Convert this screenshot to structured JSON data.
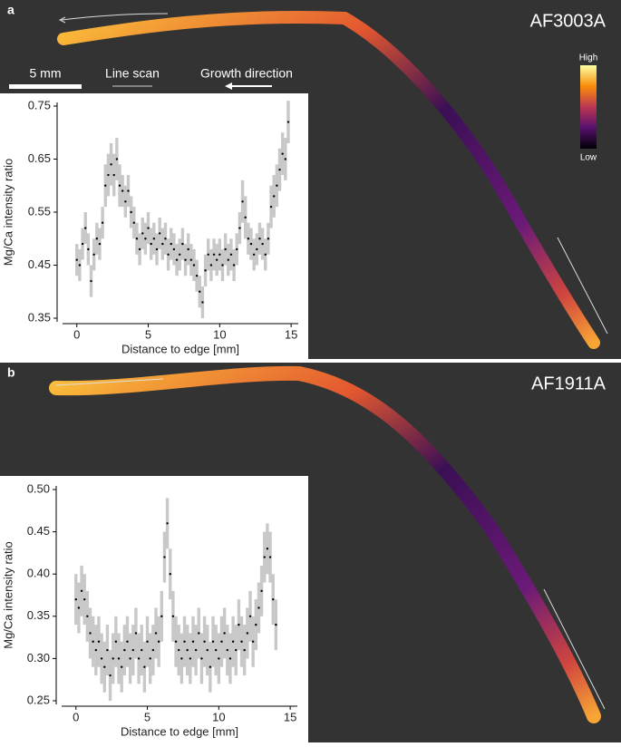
{
  "chart_data": [
    {
      "type": "scatter",
      "panel_label": "a",
      "sample": "AF3003A",
      "scale_bar_label": "5 mm",
      "line_scan_label": "Line scan",
      "growth_direction_label": "Growth direction",
      "colorbar_high": "High",
      "colorbar_low": "Low",
      "xlabel": "Distance to edge [mm]",
      "ylabel": "Mg/Ca intensity ratio",
      "xlim": [
        -1,
        15.5
      ],
      "ylim": [
        0.35,
        0.75
      ],
      "xticks": [
        0,
        5,
        10,
        15
      ],
      "yticks": [
        0.35,
        0.45,
        0.55,
        0.65,
        0.75
      ],
      "series": [
        {
          "color": "#000000",
          "error_color": "#c8c8c8",
          "x": [
            0,
            0.2,
            0.4,
            0.6,
            0.8,
            1.0,
            1.2,
            1.4,
            1.6,
            1.8,
            2.0,
            2.2,
            2.4,
            2.6,
            2.8,
            3.0,
            3.2,
            3.4,
            3.6,
            3.8,
            4.0,
            4.2,
            4.4,
            4.6,
            4.8,
            5.0,
            5.2,
            5.4,
            5.6,
            5.8,
            6.0,
            6.2,
            6.4,
            6.6,
            6.8,
            7.0,
            7.2,
            7.4,
            7.6,
            7.8,
            8.0,
            8.2,
            8.4,
            8.6,
            8.8,
            9.0,
            9.2,
            9.4,
            9.6,
            9.8,
            10.0,
            10.2,
            10.4,
            10.6,
            10.8,
            11.0,
            11.2,
            11.4,
            11.6,
            11.8,
            12.0,
            12.2,
            12.4,
            12.6,
            12.8,
            13.0,
            13.2,
            13.4,
            13.6,
            13.8,
            14.0,
            14.2,
            14.4,
            14.6,
            14.8
          ],
          "values": [
            0.46,
            0.45,
            0.49,
            0.52,
            0.48,
            0.42,
            0.47,
            0.5,
            0.49,
            0.53,
            0.6,
            0.62,
            0.64,
            0.62,
            0.65,
            0.6,
            0.59,
            0.57,
            0.59,
            0.55,
            0.53,
            0.5,
            0.48,
            0.51,
            0.5,
            0.52,
            0.49,
            0.5,
            0.48,
            0.51,
            0.49,
            0.5,
            0.47,
            0.49,
            0.48,
            0.46,
            0.47,
            0.49,
            0.46,
            0.48,
            0.46,
            0.45,
            0.43,
            0.4,
            0.38,
            0.44,
            0.47,
            0.45,
            0.47,
            0.46,
            0.47,
            0.45,
            0.48,
            0.46,
            0.47,
            0.45,
            0.48,
            0.52,
            0.57,
            0.54,
            0.5,
            0.49,
            0.47,
            0.48,
            0.5,
            0.49,
            0.47,
            0.5,
            0.56,
            0.58,
            0.6,
            0.63,
            0.66,
            0.65,
            0.72
          ],
          "errors": [
            0.03,
            0.03,
            0.03,
            0.03,
            0.03,
            0.03,
            0.03,
            0.03,
            0.03,
            0.03,
            0.04,
            0.04,
            0.04,
            0.04,
            0.04,
            0.04,
            0.03,
            0.03,
            0.03,
            0.03,
            0.03,
            0.03,
            0.03,
            0.03,
            0.03,
            0.03,
            0.03,
            0.03,
            0.03,
            0.03,
            0.03,
            0.03,
            0.03,
            0.03,
            0.03,
            0.03,
            0.03,
            0.03,
            0.03,
            0.03,
            0.03,
            0.03,
            0.03,
            0.03,
            0.03,
            0.03,
            0.03,
            0.03,
            0.03,
            0.03,
            0.03,
            0.03,
            0.03,
            0.03,
            0.03,
            0.03,
            0.03,
            0.03,
            0.04,
            0.04,
            0.03,
            0.03,
            0.03,
            0.03,
            0.03,
            0.03,
            0.03,
            0.03,
            0.04,
            0.04,
            0.04,
            0.04,
            0.04,
            0.04,
            0.04
          ]
        }
      ]
    },
    {
      "type": "scatter",
      "panel_label": "b",
      "sample": "AF1911A",
      "xlabel": "Distance to edge [mm]",
      "ylabel": "Mg/Ca intensity ratio",
      "xlim": [
        -1,
        15.5
      ],
      "ylim": [
        0.25,
        0.5
      ],
      "xticks": [
        0,
        5,
        10,
        15
      ],
      "yticks": [
        0.25,
        {
          "value": 0.3,
          "label": "0.30"
        },
        0.35,
        {
          "value": 0.4,
          "label": "0.40"
        },
        0.45,
        {
          "value": 0.5,
          "label": "0.50"
        }
      ],
      "series": [
        {
          "color": "#000000",
          "error_color": "#c8c8c8",
          "x": [
            0,
            0.2,
            0.4,
            0.6,
            0.8,
            1.0,
            1.2,
            1.4,
            1.6,
            1.8,
            2.0,
            2.2,
            2.4,
            2.6,
            2.8,
            3.0,
            3.2,
            3.4,
            3.6,
            3.8,
            4.0,
            4.2,
            4.4,
            4.6,
            4.8,
            5.0,
            5.2,
            5.4,
            5.6,
            5.8,
            6.0,
            6.2,
            6.4,
            6.6,
            6.8,
            7.0,
            7.2,
            7.4,
            7.6,
            7.8,
            8.0,
            8.2,
            8.4,
            8.6,
            8.8,
            9.0,
            9.2,
            9.4,
            9.6,
            9.8,
            10.0,
            10.2,
            10.4,
            10.6,
            10.8,
            11.0,
            11.2,
            11.4,
            11.6,
            11.8,
            12.0,
            12.2,
            12.4,
            12.6,
            12.8,
            13.0,
            13.2,
            13.4,
            13.6,
            13.8,
            14.0
          ],
          "values": [
            0.37,
            0.36,
            0.38,
            0.37,
            0.35,
            0.33,
            0.32,
            0.31,
            0.32,
            0.3,
            0.29,
            0.31,
            0.28,
            0.3,
            0.32,
            0.3,
            0.29,
            0.31,
            0.32,
            0.3,
            0.31,
            0.33,
            0.3,
            0.31,
            0.29,
            0.32,
            0.3,
            0.31,
            0.33,
            0.32,
            0.35,
            0.42,
            0.46,
            0.4,
            0.35,
            0.32,
            0.31,
            0.3,
            0.32,
            0.31,
            0.3,
            0.32,
            0.31,
            0.33,
            0.3,
            0.32,
            0.31,
            0.29,
            0.32,
            0.31,
            0.3,
            0.32,
            0.33,
            0.31,
            0.3,
            0.32,
            0.31,
            0.34,
            0.32,
            0.31,
            0.33,
            0.35,
            0.32,
            0.34,
            0.36,
            0.38,
            0.42,
            0.43,
            0.42,
            0.37,
            0.34
          ],
          "errors": [
            0.03,
            0.03,
            0.03,
            0.03,
            0.03,
            0.03,
            0.03,
            0.03,
            0.03,
            0.03,
            0.03,
            0.03,
            0.03,
            0.03,
            0.03,
            0.03,
            0.03,
            0.03,
            0.03,
            0.03,
            0.03,
            0.03,
            0.03,
            0.03,
            0.03,
            0.03,
            0.03,
            0.03,
            0.03,
            0.03,
            0.03,
            0.03,
            0.03,
            0.03,
            0.03,
            0.03,
            0.03,
            0.03,
            0.03,
            0.03,
            0.03,
            0.03,
            0.03,
            0.03,
            0.03,
            0.03,
            0.03,
            0.03,
            0.03,
            0.03,
            0.03,
            0.03,
            0.03,
            0.03,
            0.03,
            0.03,
            0.03,
            0.03,
            0.03,
            0.03,
            0.03,
            0.03,
            0.03,
            0.03,
            0.03,
            0.03,
            0.03,
            0.03,
            0.03,
            0.03,
            0.03
          ]
        }
      ]
    }
  ]
}
